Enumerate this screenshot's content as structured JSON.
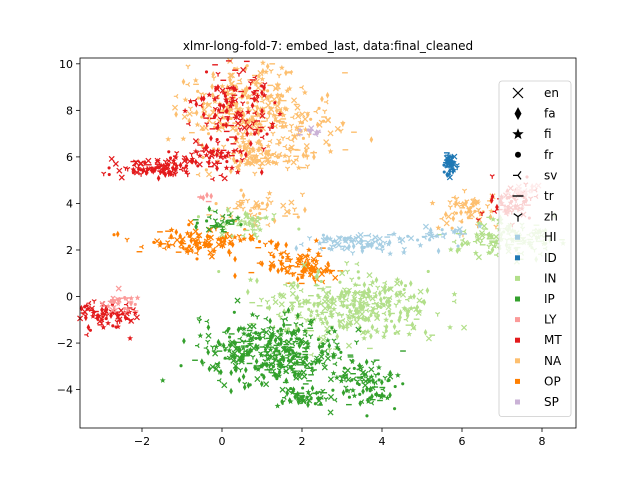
{
  "chart_data": {
    "type": "scatter",
    "title": "xlmr-long-fold-7: embed_last, data:final_cleaned",
    "xlabel": "",
    "ylabel": "",
    "xlim": [
      -3.55,
      8.85
    ],
    "ylim": [
      -5.65,
      10.25
    ],
    "xticks": [
      -2,
      0,
      2,
      4,
      6,
      8
    ],
    "yticks": [
      -4,
      -2,
      0,
      2,
      4,
      6,
      8,
      10
    ],
    "grid": false,
    "legend_position": "right",
    "marker_legend": [
      {
        "label": "en",
        "marker": "x"
      },
      {
        "label": "fa",
        "marker": "diamond"
      },
      {
        "label": "fi",
        "marker": "star"
      },
      {
        "label": "fr",
        "marker": "dot"
      },
      {
        "label": "sv",
        "marker": "tri_left"
      },
      {
        "label": "tr",
        "marker": "hline"
      },
      {
        "label": "zh",
        "marker": "tri_down"
      }
    ],
    "color_legend": [
      {
        "label": "HI",
        "color": "#a6cee3"
      },
      {
        "label": "ID",
        "color": "#1f78b4"
      },
      {
        "label": "IN",
        "color": "#b2df8a"
      },
      {
        "label": "IP",
        "color": "#33a02c"
      },
      {
        "label": "LY",
        "color": "#fb9a99"
      },
      {
        "label": "MT",
        "color": "#e31a1c"
      },
      {
        "label": "NA",
        "color": "#fdbf6f"
      },
      {
        "label": "OP",
        "color": "#ff7f00"
      },
      {
        "label": "SP",
        "color": "#cab2d6"
      }
    ],
    "clusters": [
      {
        "label": "NA",
        "center": [
          0.5,
          8.3
        ],
        "spread": [
          0.8,
          0.9
        ],
        "n": 260
      },
      {
        "label": "NA",
        "center": [
          1.0,
          6.0
        ],
        "spread": [
          0.7,
          0.3
        ],
        "n": 100
      },
      {
        "label": "NA",
        "center": [
          1.5,
          7.3
        ],
        "spread": [
          0.8,
          0.5
        ],
        "n": 90
      },
      {
        "label": "NA",
        "center": [
          0.8,
          3.8
        ],
        "spread": [
          0.5,
          0.4
        ],
        "n": 50
      },
      {
        "label": "NA",
        "center": [
          6.1,
          3.8
        ],
        "spread": [
          0.4,
          0.4
        ],
        "n": 60
      },
      {
        "label": "MT",
        "center": [
          0.3,
          8.0
        ],
        "spread": [
          0.5,
          0.9
        ],
        "n": 130
      },
      {
        "label": "MT",
        "center": [
          -1.7,
          5.5
        ],
        "spread": [
          0.5,
          0.2
        ],
        "n": 90
      },
      {
        "label": "MT",
        "center": [
          -0.3,
          6.0
        ],
        "spread": [
          0.5,
          0.4
        ],
        "n": 60
      },
      {
        "label": "MT",
        "center": [
          -2.9,
          -0.8
        ],
        "spread": [
          0.35,
          0.3
        ],
        "n": 80
      },
      {
        "label": "MT",
        "center": [
          7.2,
          4.0
        ],
        "spread": [
          0.35,
          0.35
        ],
        "n": 60
      },
      {
        "label": "LY",
        "center": [
          -2.5,
          -0.2
        ],
        "spread": [
          0.2,
          0.2
        ],
        "n": 30
      },
      {
        "label": "LY",
        "center": [
          7.5,
          4.5
        ],
        "spread": [
          0.2,
          0.2
        ],
        "n": 15
      },
      {
        "label": "LY",
        "center": [
          -0.5,
          4.2
        ],
        "spread": [
          0.1,
          0.1
        ],
        "n": 6
      },
      {
        "label": "OP",
        "center": [
          -0.5,
          2.3
        ],
        "spread": [
          0.7,
          0.3
        ],
        "n": 110
      },
      {
        "label": "OP",
        "center": [
          1.6,
          1.5
        ],
        "spread": [
          0.5,
          0.4
        ],
        "n": 60
      },
      {
        "label": "OP",
        "center": [
          2.2,
          1.1
        ],
        "spread": [
          0.3,
          0.25
        ],
        "n": 45
      },
      {
        "label": "IN",
        "center": [
          3.3,
          -0.4
        ],
        "spread": [
          1.0,
          0.7
        ],
        "n": 350
      },
      {
        "label": "IN",
        "center": [
          7.2,
          2.4
        ],
        "spread": [
          0.7,
          0.4
        ],
        "n": 140
      },
      {
        "label": "IN",
        "center": [
          0.6,
          3.2
        ],
        "spread": [
          0.4,
          0.3
        ],
        "n": 40
      },
      {
        "label": "IP",
        "center": [
          1.3,
          -2.4
        ],
        "spread": [
          0.9,
          0.7
        ],
        "n": 400
      },
      {
        "label": "IP",
        "center": [
          3.6,
          -3.7
        ],
        "spread": [
          0.35,
          0.5
        ],
        "n": 90
      },
      {
        "label": "IP",
        "center": [
          2.1,
          -4.3
        ],
        "spread": [
          0.4,
          0.3
        ],
        "n": 60
      },
      {
        "label": "IP",
        "center": [
          -0.1,
          3.2
        ],
        "spread": [
          0.3,
          0.2
        ],
        "n": 30
      },
      {
        "label": "HI",
        "center": [
          3.5,
          2.3
        ],
        "spread": [
          0.6,
          0.2
        ],
        "n": 90
      },
      {
        "label": "HI",
        "center": [
          5.5,
          2.6
        ],
        "spread": [
          0.4,
          0.2
        ],
        "n": 25
      },
      {
        "label": "ID",
        "center": [
          5.7,
          5.7
        ],
        "spread": [
          0.08,
          0.25
        ],
        "n": 40
      },
      {
        "label": "SP",
        "center": [
          2.3,
          7.0
        ],
        "spread": [
          0.15,
          0.1
        ],
        "n": 12
      }
    ]
  }
}
